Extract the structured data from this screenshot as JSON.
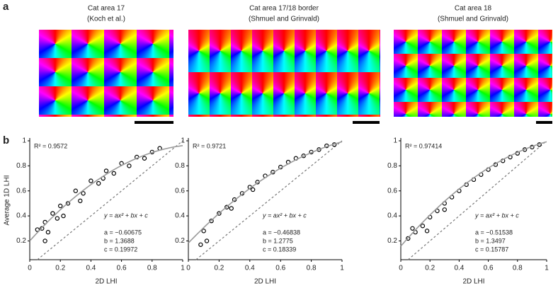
{
  "panel_a": {
    "label": "a",
    "maps": [
      {
        "title": "Cat area 17",
        "subtitle": "(Koch et al.)"
      },
      {
        "title": "Cat area 17/18 border",
        "subtitle": "(Shmuel and Grinvald)"
      },
      {
        "title": "Cat area 18",
        "subtitle": "(Shmuel and Grinvald)"
      }
    ]
  },
  "panel_b_label": "b",
  "chart_data": [
    {
      "type": "scatter",
      "ylabel": "Average 1D LHI",
      "xlabel": "2D LHI",
      "r2": "R² = 0.9572",
      "equation": "y = ax² + bx + c",
      "coefficient_labels": [
        "a = −0.60675",
        "b = 1.3688",
        "c = 0.19972"
      ],
      "fit": {
        "a": -0.60675,
        "b": 1.3688,
        "c": 0.19972
      },
      "x": [
        0.05,
        0.08,
        0.1,
        0.12,
        0.15,
        0.18,
        0.2,
        0.25,
        0.3,
        0.35,
        0.4,
        0.45,
        0.5,
        0.55,
        0.6,
        0.65,
        0.7,
        0.75,
        0.8,
        0.85,
        0.1,
        0.22,
        0.33,
        0.48
      ],
      "y": [
        0.29,
        0.3,
        0.35,
        0.27,
        0.42,
        0.38,
        0.48,
        0.5,
        0.6,
        0.58,
        0.68,
        0.66,
        0.76,
        0.74,
        0.82,
        0.8,
        0.87,
        0.86,
        0.91,
        0.94,
        0.2,
        0.4,
        0.52,
        0.7
      ],
      "xlim": [
        0,
        1
      ],
      "ylim": [
        0.05,
        1
      ],
      "xticks": [
        0,
        0.2,
        0.4,
        0.6,
        0.8,
        1
      ],
      "yticks": [
        0.2,
        0.4,
        0.6,
        0.8,
        1
      ],
      "marker_color": "#000000",
      "fit_color": "#9a9a9a",
      "identity_color": "#777777"
    },
    {
      "type": "scatter",
      "xlabel": "2D LHI",
      "r2": "R² = 0.9721",
      "equation": "y = ax² + bx + c",
      "coefficient_labels": [
        "a = −0.46838",
        "b = 1.2775",
        "c = 0.18339"
      ],
      "fit": {
        "a": -0.46838,
        "b": 1.2775,
        "c": 0.18339
      },
      "x": [
        0.08,
        0.1,
        0.15,
        0.2,
        0.25,
        0.3,
        0.35,
        0.4,
        0.45,
        0.5,
        0.55,
        0.6,
        0.65,
        0.7,
        0.75,
        0.8,
        0.85,
        0.9,
        0.95,
        0.12,
        0.28,
        0.42
      ],
      "y": [
        0.17,
        0.28,
        0.36,
        0.42,
        0.47,
        0.53,
        0.58,
        0.63,
        0.67,
        0.72,
        0.75,
        0.79,
        0.83,
        0.86,
        0.88,
        0.91,
        0.93,
        0.96,
        0.97,
        0.2,
        0.46,
        0.61
      ],
      "xlim": [
        0,
        1
      ],
      "ylim": [
        0.05,
        1
      ],
      "xticks": [
        0,
        0.2,
        0.4,
        0.6,
        0.8,
        1
      ],
      "yticks": [
        0.2,
        0.4,
        0.6,
        0.8,
        1
      ],
      "marker_color": "#000000",
      "fit_color": "#9a9a9a",
      "identity_color": "#777777"
    },
    {
      "type": "scatter",
      "xlabel": "2D LHI",
      "r2": "R² = 0.97414",
      "equation": "y = ax² + bx + c",
      "coefficient_labels": [
        "a = −0.51538",
        "b = 1.3497",
        "c = 0.15787"
      ],
      "fit": {
        "a": -0.51538,
        "b": 1.3497,
        "c": 0.15787
      },
      "x": [
        0.05,
        0.1,
        0.15,
        0.2,
        0.25,
        0.3,
        0.35,
        0.4,
        0.45,
        0.5,
        0.55,
        0.6,
        0.65,
        0.7,
        0.75,
        0.8,
        0.85,
        0.9,
        0.95,
        0.08,
        0.18,
        0.3
      ],
      "y": [
        0.22,
        0.27,
        0.32,
        0.39,
        0.44,
        0.5,
        0.55,
        0.6,
        0.65,
        0.69,
        0.73,
        0.77,
        0.81,
        0.84,
        0.87,
        0.9,
        0.93,
        0.95,
        0.97,
        0.3,
        0.28,
        0.45
      ],
      "xlim": [
        0,
        1
      ],
      "ylim": [
        0.05,
        1
      ],
      "xticks": [
        0,
        0.2,
        0.4,
        0.6,
        0.8,
        1
      ],
      "yticks": [
        0.2,
        0.4,
        0.6,
        0.8,
        1
      ],
      "marker_color": "#000000",
      "fit_color": "#9a9a9a",
      "identity_color": "#777777"
    }
  ]
}
